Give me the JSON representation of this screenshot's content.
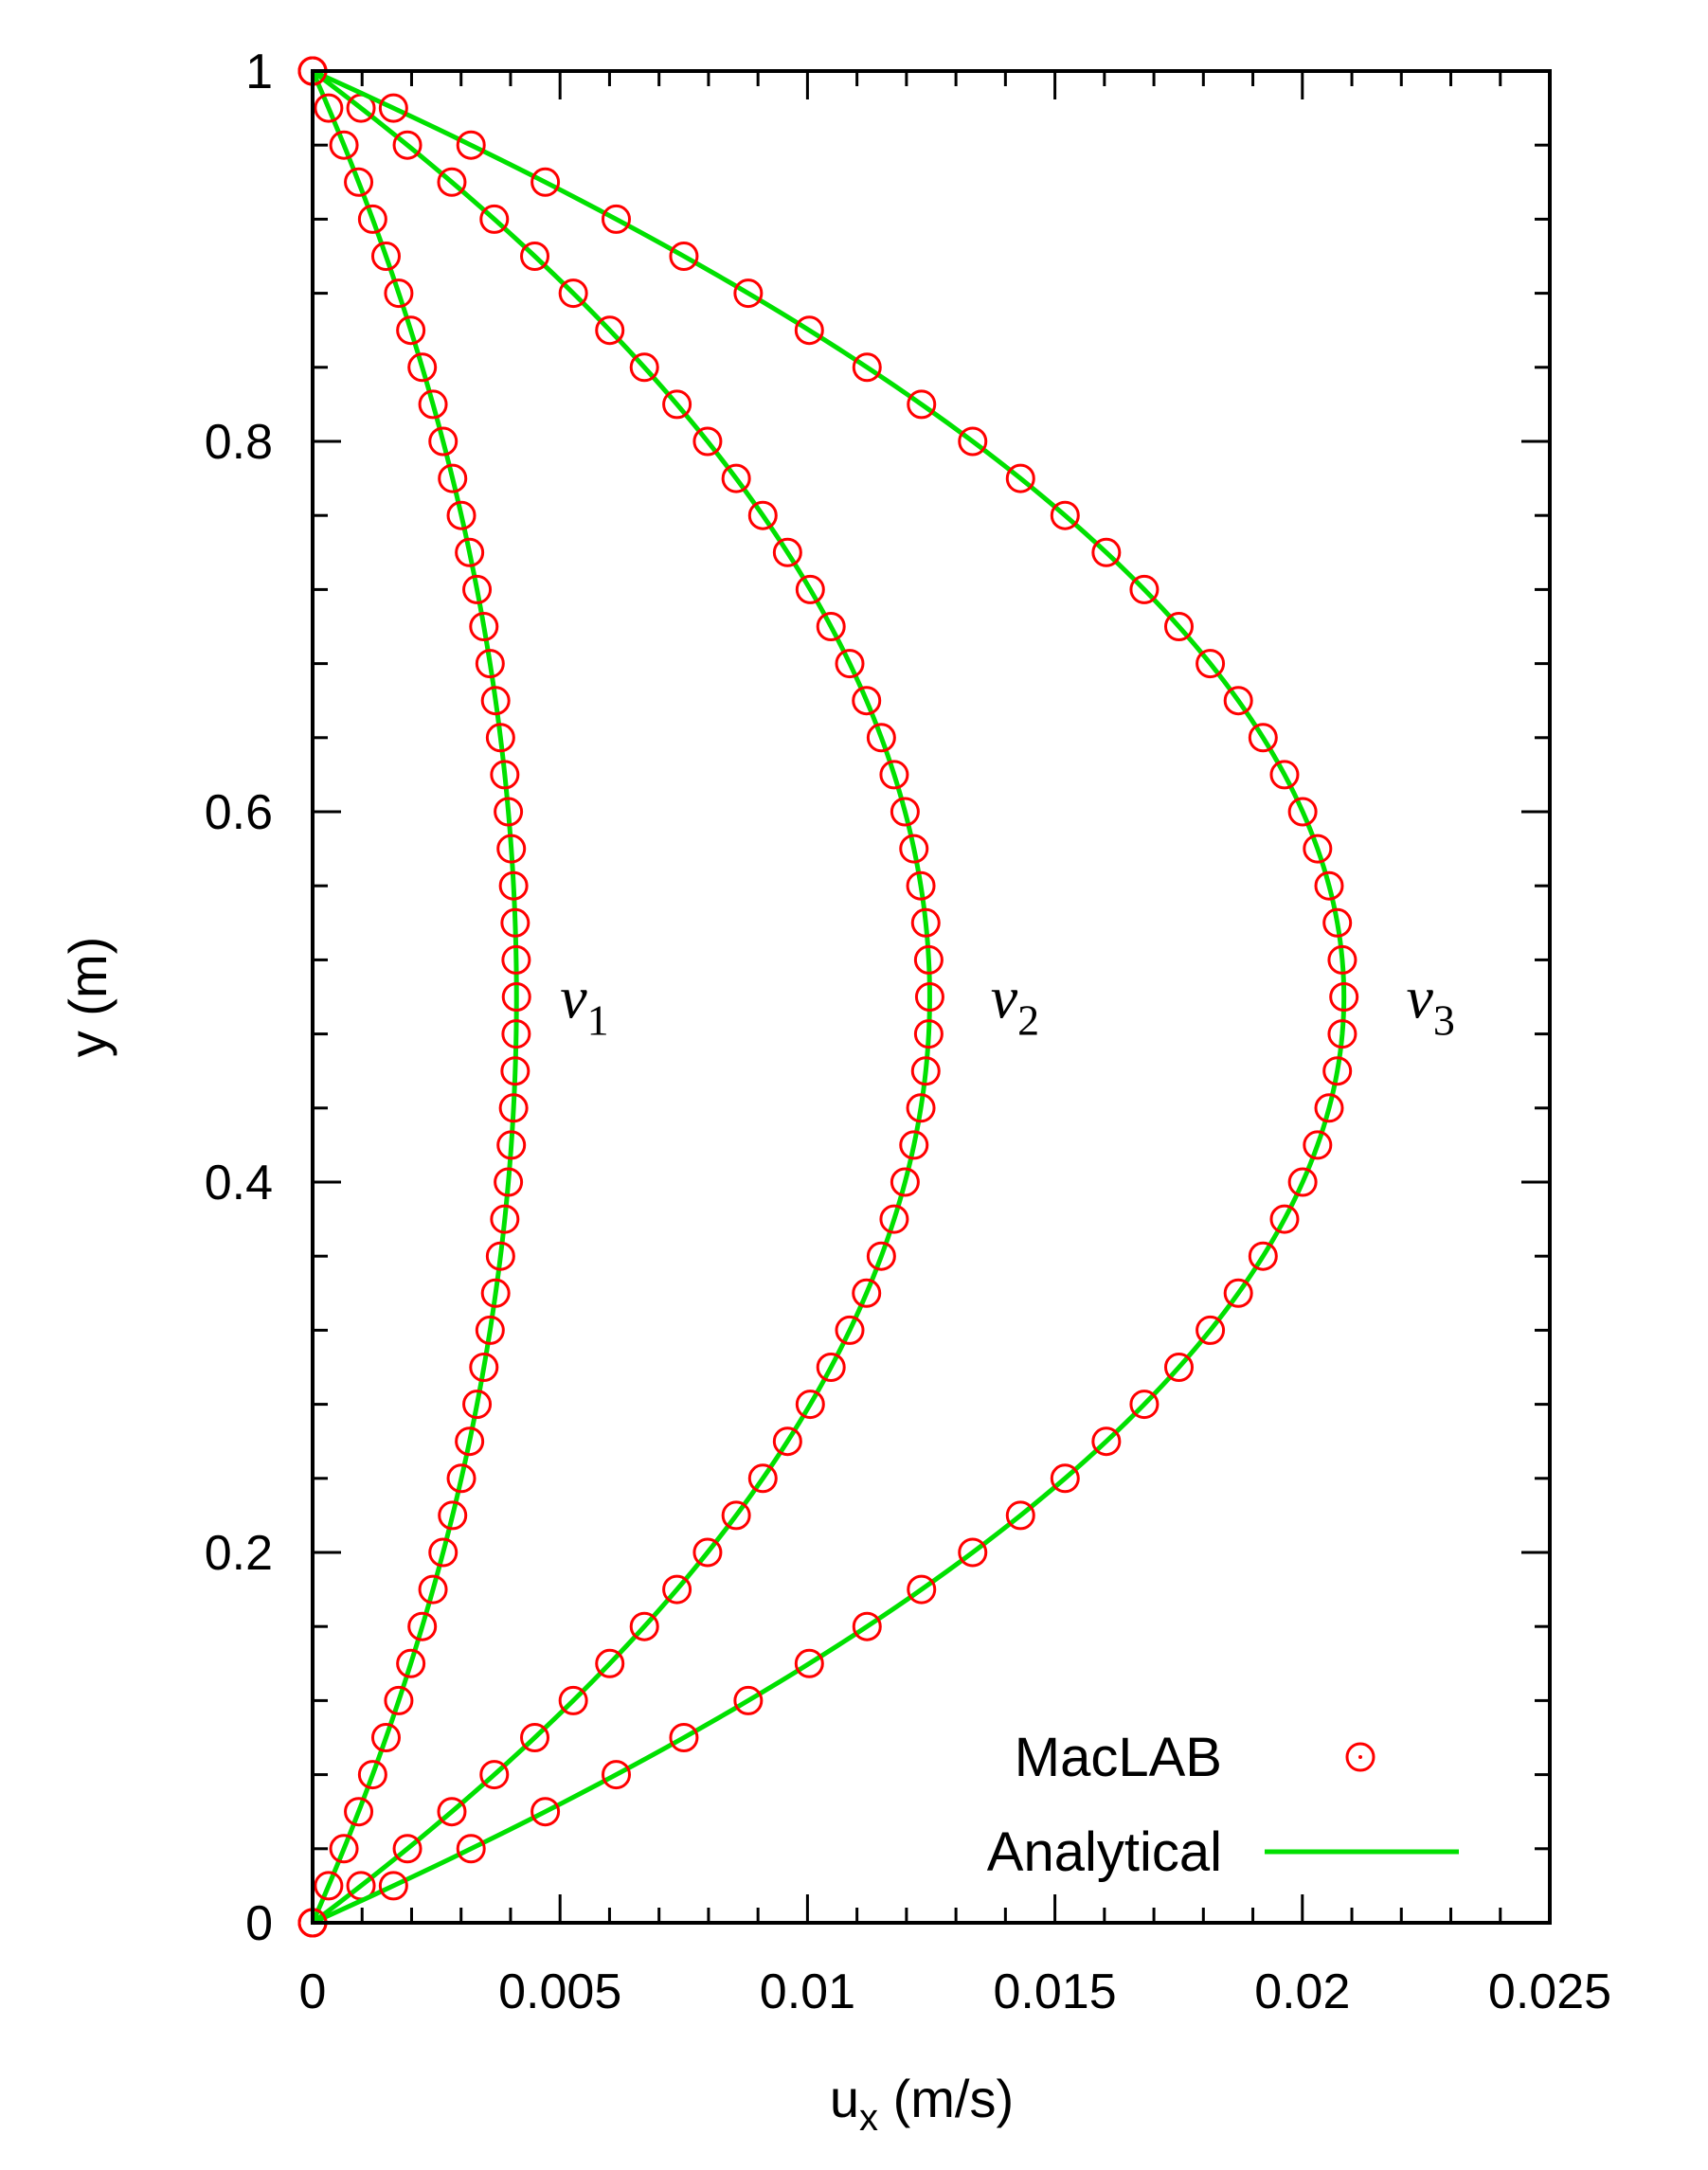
{
  "chart_data": {
    "type": "line",
    "title": "",
    "xlabel": "u",
    "xlabel_sub": "x",
    "xlabel_unit": " (m/s)",
    "ylabel": "y (m)",
    "xlim": [
      0,
      0.025
    ],
    "ylim": [
      0,
      1
    ],
    "x_ticks": [
      0,
      0.005,
      0.01,
      0.015,
      0.02,
      0.025
    ],
    "x_tick_labels": [
      "0",
      "0.005",
      "0.01",
      "0.015",
      "0.02",
      "0.025"
    ],
    "y_ticks": [
      0,
      0.2,
      0.4,
      0.6,
      0.8,
      1
    ],
    "y_tick_labels": [
      "0",
      "0.2",
      "0.4",
      "0.6",
      "0.8",
      "1"
    ],
    "grid": false,
    "legend_position": "bottom-right",
    "legend": [
      {
        "label": "MacLAB",
        "marker": "circle",
        "color": "#ff0000"
      },
      {
        "label": "Analytical",
        "marker": "line",
        "color": "#00e000"
      }
    ],
    "series": [
      {
        "name": "v1",
        "label_main": "ν",
        "label_sub": "1",
        "label_at": {
          "x": 0.005,
          "y": 0.5
        },
        "umax": 0.00412
      },
      {
        "name": "v2",
        "label_main": "ν",
        "label_sub": "2",
        "label_at": {
          "x": 0.0137,
          "y": 0.5
        },
        "umax": 0.01247
      },
      {
        "name": "v3",
        "label_main": "ν",
        "label_sub": "3",
        "label_at": {
          "x": 0.0221,
          "y": 0.5
        },
        "umax": 0.02084
      }
    ],
    "y_samples": [
      0,
      0.02,
      0.04,
      0.06,
      0.08,
      0.1,
      0.12,
      0.14,
      0.16,
      0.18,
      0.2,
      0.22,
      0.24,
      0.26,
      0.28,
      0.3,
      0.32,
      0.34,
      0.36,
      0.38,
      0.4,
      0.42,
      0.44,
      0.46,
      0.48,
      0.5,
      0.52,
      0.54,
      0.56,
      0.58,
      0.6,
      0.62,
      0.64,
      0.66,
      0.68,
      0.7,
      0.72,
      0.74,
      0.76,
      0.78,
      0.8,
      0.82,
      0.84,
      0.86,
      0.88,
      0.9,
      0.92,
      0.94,
      0.96,
      0.98,
      1
    ],
    "profile": "u = 4 * umax * y * (1 - y)",
    "colors": {
      "markers": "#ff0000",
      "analytical": "#00e000",
      "axes": "#000000"
    }
  }
}
